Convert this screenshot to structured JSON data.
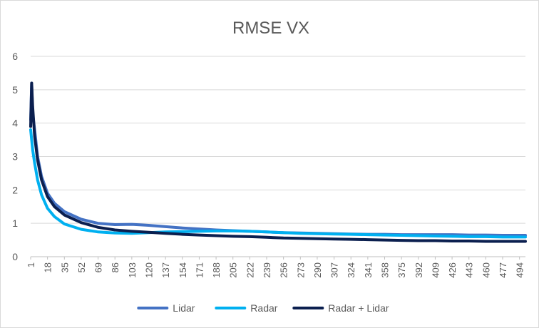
{
  "chart_data": {
    "type": "line",
    "title": "RMSE VX",
    "xlabel": "",
    "ylabel": "",
    "ylim": [
      0,
      6
    ],
    "yticks": [
      0,
      1,
      2,
      3,
      4,
      5,
      6
    ],
    "xlim": [
      1,
      500
    ],
    "xtick_labels": [
      1,
      18,
      35,
      52,
      69,
      86,
      103,
      120,
      137,
      154,
      171,
      188,
      205,
      222,
      239,
      256,
      273,
      290,
      307,
      324,
      341,
      358,
      375,
      392,
      409,
      426,
      443,
      460,
      477,
      494
    ],
    "grid": "horizontal",
    "legend_position": "bottom",
    "series": [
      {
        "name": "Lidar",
        "color": "#4472c4",
        "points": [
          [
            1,
            4.1
          ],
          [
            2,
            5.2
          ],
          [
            3,
            4.3
          ],
          [
            5,
            3.8
          ],
          [
            8,
            3.0
          ],
          [
            12,
            2.4
          ],
          [
            18,
            1.9
          ],
          [
            25,
            1.6
          ],
          [
            35,
            1.35
          ],
          [
            52,
            1.12
          ],
          [
            69,
            1.0
          ],
          [
            86,
            0.96
          ],
          [
            103,
            0.97
          ],
          [
            120,
            0.94
          ],
          [
            137,
            0.9
          ],
          [
            154,
            0.86
          ],
          [
            171,
            0.83
          ],
          [
            188,
            0.8
          ],
          [
            205,
            0.78
          ],
          [
            222,
            0.76
          ],
          [
            239,
            0.74
          ],
          [
            256,
            0.72
          ],
          [
            273,
            0.71
          ],
          [
            290,
            0.7
          ],
          [
            307,
            0.69
          ],
          [
            324,
            0.68
          ],
          [
            341,
            0.67
          ],
          [
            358,
            0.67
          ],
          [
            375,
            0.66
          ],
          [
            392,
            0.66
          ],
          [
            409,
            0.66
          ],
          [
            426,
            0.66
          ],
          [
            443,
            0.65
          ],
          [
            460,
            0.65
          ],
          [
            477,
            0.64
          ],
          [
            494,
            0.64
          ],
          [
            500,
            0.64
          ]
        ]
      },
      {
        "name": "Radar",
        "color": "#00b0f0",
        "points": [
          [
            1,
            3.8
          ],
          [
            2,
            3.5
          ],
          [
            3,
            3.2
          ],
          [
            5,
            2.8
          ],
          [
            8,
            2.3
          ],
          [
            12,
            1.85
          ],
          [
            18,
            1.45
          ],
          [
            25,
            1.2
          ],
          [
            35,
            0.98
          ],
          [
            52,
            0.82
          ],
          [
            69,
            0.74
          ],
          [
            86,
            0.71
          ],
          [
            103,
            0.7
          ],
          [
            120,
            0.72
          ],
          [
            137,
            0.74
          ],
          [
            154,
            0.75
          ],
          [
            171,
            0.76
          ],
          [
            188,
            0.77
          ],
          [
            205,
            0.77
          ],
          [
            222,
            0.76
          ],
          [
            239,
            0.74
          ],
          [
            256,
            0.72
          ],
          [
            273,
            0.7
          ],
          [
            290,
            0.69
          ],
          [
            307,
            0.68
          ],
          [
            324,
            0.67
          ],
          [
            341,
            0.66
          ],
          [
            358,
            0.65
          ],
          [
            375,
            0.64
          ],
          [
            392,
            0.63
          ],
          [
            409,
            0.62
          ],
          [
            426,
            0.61
          ],
          [
            443,
            0.6
          ],
          [
            460,
            0.6
          ],
          [
            477,
            0.59
          ],
          [
            494,
            0.59
          ],
          [
            500,
            0.59
          ]
        ]
      },
      {
        "name": "Radar + Lidar",
        "color": "#0b1f4f",
        "points": [
          [
            1,
            3.9
          ],
          [
            2,
            5.2
          ],
          [
            3,
            4.5
          ],
          [
            5,
            3.6
          ],
          [
            8,
            2.9
          ],
          [
            12,
            2.3
          ],
          [
            18,
            1.8
          ],
          [
            25,
            1.5
          ],
          [
            35,
            1.25
          ],
          [
            52,
            1.02
          ],
          [
            69,
            0.88
          ],
          [
            86,
            0.8
          ],
          [
            103,
            0.76
          ],
          [
            120,
            0.73
          ],
          [
            137,
            0.7
          ],
          [
            154,
            0.67
          ],
          [
            171,
            0.65
          ],
          [
            188,
            0.63
          ],
          [
            205,
            0.61
          ],
          [
            222,
            0.6
          ],
          [
            239,
            0.58
          ],
          [
            256,
            0.56
          ],
          [
            273,
            0.55
          ],
          [
            290,
            0.54
          ],
          [
            307,
            0.53
          ],
          [
            324,
            0.52
          ],
          [
            341,
            0.51
          ],
          [
            358,
            0.5
          ],
          [
            375,
            0.49
          ],
          [
            392,
            0.48
          ],
          [
            409,
            0.48
          ],
          [
            426,
            0.47
          ],
          [
            443,
            0.47
          ],
          [
            460,
            0.46
          ],
          [
            477,
            0.46
          ],
          [
            494,
            0.46
          ],
          [
            500,
            0.46
          ]
        ]
      }
    ]
  }
}
